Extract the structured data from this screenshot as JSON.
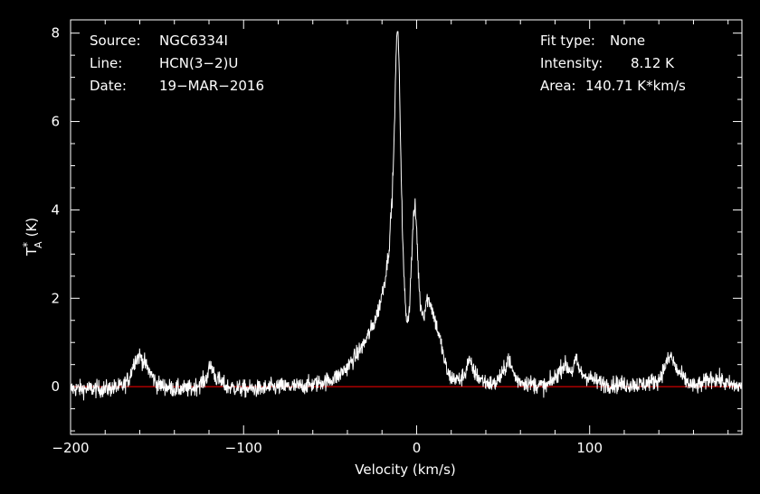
{
  "header": {
    "source_label": "Source:",
    "source_value": "NGC6334I",
    "line_label": "Line:",
    "line_value": "HCN(3−2)U",
    "date_label": "Date:",
    "date_value": "19−MAR−2016",
    "fit_label": "Fit type:",
    "fit_value": "None",
    "intensity_label": "Intensity:",
    "intensity_value": "8.12 K",
    "area_label": "Area:",
    "area_value": "140.71 K*km/s"
  },
  "colors": {
    "background": "#000000",
    "spectrum": "#ffffff",
    "baseline": "#ff0000",
    "axes": "#ffffff"
  },
  "chart_data": {
    "type": "line",
    "title": "",
    "xlabel": "Velocity (km/s)",
    "ylabel": "T*A (K)",
    "ylabel_main": "T",
    "ylabel_sup": "*",
    "ylabel_sub": "A",
    "ylabel_unit": "(K)",
    "xlim": [
      -200,
      188
    ],
    "ylim": [
      -1.08,
      8.3
    ],
    "x_ticks": [
      -200,
      -100,
      0,
      100
    ],
    "x_tick_labels": [
      "−200",
      "−100",
      "0",
      "100"
    ],
    "y_ticks": [
      0,
      2,
      4,
      6,
      8
    ],
    "y_tick_labels": [
      "0",
      "2",
      "4",
      "6",
      "8"
    ],
    "grid": false,
    "baseline": 0,
    "noise_rms": 0.14,
    "series": [
      {
        "x": [
          -200,
          -180,
          -170,
          -166,
          -163,
          -160,
          -156,
          -150,
          -140,
          -130,
          -122,
          -119,
          -116,
          -110,
          -100,
          -90,
          -80,
          -70,
          -60,
          -50,
          -45,
          -40,
          -35,
          -30,
          -25,
          -22,
          -20,
          -18,
          -16,
          -14,
          -13,
          -12,
          -11.5,
          -11,
          -10.5,
          -10,
          -9,
          -8,
          -7,
          -6,
          -5,
          -4,
          -3,
          -2,
          -1,
          0,
          1,
          2,
          4,
          6,
          8,
          10,
          12,
          14,
          16,
          18,
          20,
          25,
          28,
          30,
          33,
          36,
          40,
          45,
          50,
          53,
          55,
          58,
          62,
          68,
          75,
          80,
          85,
          90,
          92,
          95,
          100,
          105,
          110,
          115,
          120,
          125,
          130,
          135,
          140,
          144,
          147,
          150,
          155,
          160,
          165,
          170,
          175,
          180,
          188
        ],
        "y": [
          -0.05,
          -0.05,
          0.0,
          0.2,
          0.6,
          0.7,
          0.45,
          0.05,
          -0.05,
          -0.05,
          0.15,
          0.5,
          0.2,
          0.0,
          -0.05,
          -0.05,
          0.0,
          0.0,
          0.05,
          0.15,
          0.25,
          0.45,
          0.7,
          1.0,
          1.4,
          1.75,
          2.1,
          2.5,
          3.1,
          4.4,
          5.6,
          7.3,
          7.9,
          8.1,
          7.8,
          7.0,
          5.0,
          3.2,
          2.2,
          1.6,
          1.5,
          1.9,
          2.8,
          3.7,
          4.1,
          3.6,
          2.6,
          1.9,
          1.6,
          2.0,
          1.9,
          1.6,
          1.3,
          1.0,
          0.6,
          0.3,
          0.2,
          0.15,
          0.3,
          0.6,
          0.35,
          0.2,
          0.1,
          0.05,
          0.3,
          0.65,
          0.4,
          0.15,
          0.1,
          0.05,
          0.0,
          0.2,
          0.5,
          0.35,
          0.6,
          0.3,
          0.2,
          0.1,
          0.05,
          0.05,
          0.05,
          0.05,
          0.05,
          0.1,
          0.15,
          0.5,
          0.7,
          0.4,
          0.15,
          0.0,
          0.05,
          0.2,
          0.15,
          0.05,
          0.0
        ]
      }
    ]
  }
}
